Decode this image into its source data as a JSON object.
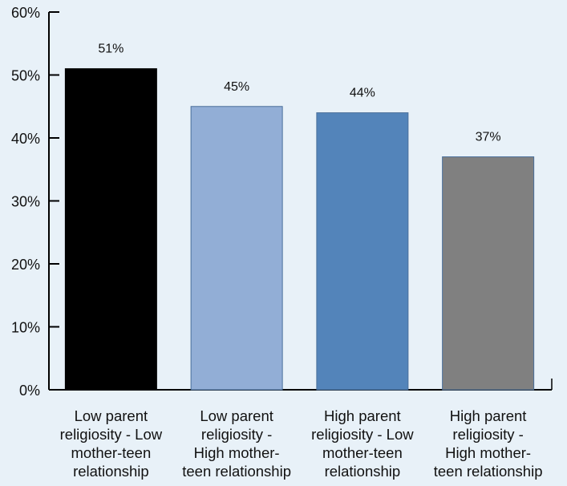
{
  "chart_data": {
    "type": "bar",
    "title": "",
    "xlabel": "",
    "ylabel": "",
    "categories": [
      [
        "Low parent",
        "religiosity - Low",
        "mother-teen",
        "relationship"
      ],
      [
        "Low parent",
        "religiosity -",
        "High mother-",
        "teen relationship"
      ],
      [
        "High parent",
        "religiosity -  Low",
        "mother-teen",
        "relationship"
      ],
      [
        "High parent",
        "religiosity -",
        "High mother-",
        "teen relationship"
      ]
    ],
    "values": [
      51,
      45,
      44,
      37
    ],
    "data_labels": [
      "51%",
      "45%",
      "44%",
      "37%"
    ],
    "colors": [
      "#000000",
      "#92aed6",
      "#5384ba",
      "#808080"
    ],
    "ylim": [
      0,
      60
    ],
    "yticks": [
      0,
      10,
      20,
      30,
      40,
      50,
      60
    ],
    "ytick_labels": [
      "0%",
      "10%",
      "20%",
      "30%",
      "40%",
      "50%",
      "60%"
    ],
    "grid": false,
    "legend": "none"
  }
}
